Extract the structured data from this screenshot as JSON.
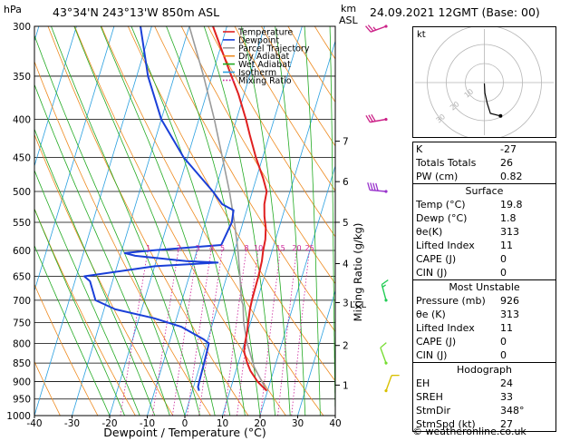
{
  "header": {
    "location": "43°34'N  243°13'W  850m  ASL",
    "datetime": "24.09.2021  12GMT  (Base: 00)",
    "hpa_label": "hPa",
    "km_label": "km",
    "asl_label": "ASL"
  },
  "chart_data": {
    "type": "line",
    "xlabel": "Dewpoint / Temperature (°C)",
    "ylabel_right": "Mixing Ratio (g/kg)",
    "xlim": [
      -40,
      40
    ],
    "ylim": [
      1000,
      300
    ],
    "y_scale": "log",
    "x_ticks": [
      -40,
      -30,
      -20,
      -10,
      0,
      10,
      20,
      30,
      40
    ],
    "pressure_levels": [
      300,
      350,
      400,
      450,
      500,
      550,
      600,
      650,
      700,
      750,
      800,
      850,
      900,
      950,
      1000
    ],
    "km_ticks": [
      {
        "label": "1",
        "p": 910
      },
      {
        "label": "2",
        "p": 805
      },
      {
        "label": "3",
        "p": 705
      },
      {
        "label": "4",
        "p": 625
      },
      {
        "label": "5",
        "p": 550
      },
      {
        "label": "6",
        "p": 485
      },
      {
        "label": "7",
        "p": 428
      }
    ],
    "lcl_label": "LCL",
    "lcl_p": 708,
    "mixing_ratio_labels": [
      "1",
      "2",
      "3",
      "4",
      "5",
      "8",
      "10",
      "15",
      "20",
      "25"
    ],
    "mixing_ratio_label_p": 595,
    "legend": {
      "position": "top-left",
      "entries": [
        {
          "name": "Temperature",
          "color": "#e02020"
        },
        {
          "name": "Dewpoint",
          "color": "#1a3fd8"
        },
        {
          "name": "Parcel Trajectory",
          "color": "#9a9a9a"
        },
        {
          "name": "Dry Adiabat",
          "color": "#ee8a1f"
        },
        {
          "name": "Wet Adiabat",
          "color": "#22aa22"
        },
        {
          "name": "Isotherm",
          "color": "#2aa0e0"
        },
        {
          "name": "Mixing Ratio",
          "color": "#cc2299"
        }
      ]
    },
    "series": [
      {
        "name": "Temperature",
        "color": "#e02020",
        "points": [
          [
            926,
            19.8
          ],
          [
            915,
            18.4
          ],
          [
            900,
            16.6
          ],
          [
            870,
            13.8
          ],
          [
            850,
            12.4
          ],
          [
            820,
            10.6
          ],
          [
            800,
            10.2
          ],
          [
            770,
            9.8
          ],
          [
            750,
            9.4
          ],
          [
            720,
            8.8
          ],
          [
            700,
            8.6
          ],
          [
            680,
            8.5
          ],
          [
            650,
            8.4
          ],
          [
            620,
            8.1
          ],
          [
            600,
            7.6
          ],
          [
            580,
            7.3
          ],
          [
            560,
            6.5
          ],
          [
            540,
            5.2
          ],
          [
            520,
            4.2
          ],
          [
            500,
            3.8
          ],
          [
            480,
            1.8
          ],
          [
            450,
            -1.8
          ],
          [
            420,
            -5.2
          ],
          [
            400,
            -7.5
          ],
          [
            370,
            -11.5
          ],
          [
            350,
            -14.8
          ],
          [
            320,
            -20
          ],
          [
            300,
            -23.7
          ]
        ]
      },
      {
        "name": "Dewpoint",
        "color": "#1a3fd8",
        "points": [
          [
            926,
            1.8
          ],
          [
            915,
            1.2
          ],
          [
            900,
            1.1
          ],
          [
            850,
            0.9
          ],
          [
            800,
            0.6
          ],
          [
            790,
            -1.1
          ],
          [
            760,
            -8
          ],
          [
            740,
            -16
          ],
          [
            720,
            -27
          ],
          [
            700,
            -33
          ],
          [
            660,
            -36
          ],
          [
            650,
            -37.9
          ],
          [
            640,
            -29
          ],
          [
            630,
            -20
          ],
          [
            623,
            -3.5
          ],
          [
            620,
            -12
          ],
          [
            610,
            -26
          ],
          [
            605,
            -29
          ],
          [
            600,
            -22
          ],
          [
            590,
            -4
          ],
          [
            570,
            -3.5
          ],
          [
            550,
            -3
          ],
          [
            530,
            -3.5
          ],
          [
            520,
            -7
          ],
          [
            500,
            -10.5
          ],
          [
            450,
            -21
          ],
          [
            400,
            -30
          ],
          [
            350,
            -37
          ],
          [
            300,
            -43
          ]
        ]
      },
      {
        "name": "Parcel Trajectory",
        "color": "#9a9a9a",
        "points": [
          [
            926,
            19.8
          ],
          [
            860,
            14.5
          ],
          [
            800,
            10.8
          ],
          [
            750,
            8.2
          ],
          [
            710,
            6.6
          ],
          [
            700,
            5.8
          ],
          [
            650,
            3.5
          ],
          [
            600,
            0.9
          ],
          [
            550,
            -2.3
          ],
          [
            500,
            -6.1
          ],
          [
            450,
            -10.7
          ],
          [
            400,
            -15.9
          ],
          [
            350,
            -22.2
          ],
          [
            300,
            -30
          ]
        ]
      }
    ],
    "wind_barbs": [
      {
        "p": 926,
        "dir": 20,
        "speed": 10,
        "color": "#d8c000"
      },
      {
        "p": 850,
        "dir": 340,
        "speed": 10,
        "color": "#77dd33"
      },
      {
        "p": 700,
        "dir": 345,
        "speed": 15,
        "color": "#22cc55"
      },
      {
        "p": 500,
        "dir": 275,
        "speed": 40,
        "color": "#9933cc"
      },
      {
        "p": 400,
        "dir": 260,
        "speed": 30,
        "color": "#cc2288"
      },
      {
        "p": 300,
        "dir": 250,
        "speed": 25,
        "color": "#cc2288"
      }
    ],
    "hodograph": {
      "label": "kt",
      "ring_labels": [
        "10",
        "20",
        "30"
      ],
      "points": [
        [
          0,
          -0.5
        ],
        [
          0.3,
          -5.5
        ],
        [
          1.5,
          -11
        ],
        [
          3.2,
          -16.2
        ],
        [
          8.5,
          -17.5
        ]
      ]
    }
  },
  "indices": {
    "rows": [
      {
        "label": "K",
        "value": "-27"
      },
      {
        "label": "Totals Totals",
        "value": "26"
      },
      {
        "label": "PW (cm)",
        "value": "0.82"
      }
    ]
  },
  "surface": {
    "title": "Surface",
    "rows": [
      {
        "label": "Temp (°C)",
        "value": "19.8"
      },
      {
        "label": "Dewp (°C)",
        "value": "1.8"
      },
      {
        "label": "θe(K)",
        "value": "313"
      },
      {
        "label": "Lifted Index",
        "value": "11"
      },
      {
        "label": "CAPE (J)",
        "value": "0"
      },
      {
        "label": "CIN (J)",
        "value": "0"
      }
    ]
  },
  "most_unstable": {
    "title": "Most Unstable",
    "rows": [
      {
        "label": "Pressure (mb)",
        "value": "926"
      },
      {
        "label": "θe (K)",
        "value": "313"
      },
      {
        "label": "Lifted Index",
        "value": "11"
      },
      {
        "label": "CAPE (J)",
        "value": "0"
      },
      {
        "label": "CIN (J)",
        "value": "0"
      }
    ]
  },
  "hodograph_table": {
    "title": "Hodograph",
    "rows": [
      {
        "label": "EH",
        "value": "24"
      },
      {
        "label": "SREH",
        "value": "33"
      },
      {
        "label": "StmDir",
        "value": "348°"
      },
      {
        "label": "StmSpd (kt)",
        "value": "27"
      }
    ]
  },
  "copyright": "© weatheronline.co.uk"
}
